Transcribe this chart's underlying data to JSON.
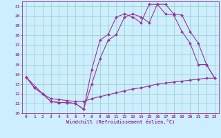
{
  "xlabel": "Windchill (Refroidissement éolien,°C)",
  "bg_color": "#cceeff",
  "grid_color": "#99ccbb",
  "line_color": "#993399",
  "xlim": [
    -0.5,
    23.5
  ],
  "ylim": [
    10,
    21.5
  ],
  "xticks": [
    0,
    1,
    2,
    3,
    4,
    5,
    6,
    7,
    8,
    9,
    10,
    11,
    12,
    13,
    14,
    15,
    16,
    17,
    18,
    19,
    20,
    21,
    22,
    23
  ],
  "yticks": [
    10,
    11,
    12,
    13,
    14,
    15,
    16,
    17,
    18,
    19,
    20,
    21
  ],
  "curve1_x": [
    0,
    1,
    2,
    3,
    4,
    5,
    6,
    7,
    8,
    9,
    10,
    11,
    12,
    13,
    14,
    15,
    16,
    17,
    18,
    19,
    20,
    21,
    22,
    23
  ],
  "curve1_y": [
    13.7,
    12.6,
    12.0,
    11.2,
    11.1,
    11.1,
    11.0,
    10.4,
    13.0,
    15.6,
    17.5,
    18.1,
    19.9,
    20.2,
    19.9,
    19.3,
    21.2,
    21.2,
    20.2,
    20.1,
    18.4,
    17.2,
    15.0,
    13.6
  ],
  "curve2_x": [
    0,
    2,
    3,
    4,
    5,
    6,
    7,
    8,
    9,
    10,
    11,
    12,
    13,
    14,
    15,
    16,
    17,
    18,
    19,
    20,
    21,
    22,
    23
  ],
  "curve2_y": [
    13.7,
    12.0,
    11.2,
    11.1,
    11.1,
    11.0,
    10.4,
    14.5,
    17.5,
    18.1,
    19.9,
    20.2,
    19.9,
    19.3,
    21.2,
    21.2,
    20.2,
    20.1,
    18.4,
    17.2,
    15.0,
    15.0,
    13.6
  ],
  "curve3_x": [
    0,
    1,
    2,
    3,
    4,
    5,
    6,
    7,
    8,
    9,
    10,
    11,
    12,
    13,
    14,
    15,
    16,
    17,
    18,
    19,
    20,
    21,
    22,
    23
  ],
  "curve3_y": [
    13.7,
    12.6,
    12.0,
    11.5,
    11.4,
    11.3,
    11.2,
    11.2,
    11.5,
    11.7,
    11.9,
    12.1,
    12.3,
    12.5,
    12.6,
    12.8,
    13.0,
    13.1,
    13.2,
    13.3,
    13.4,
    13.5,
    13.6,
    13.6
  ]
}
